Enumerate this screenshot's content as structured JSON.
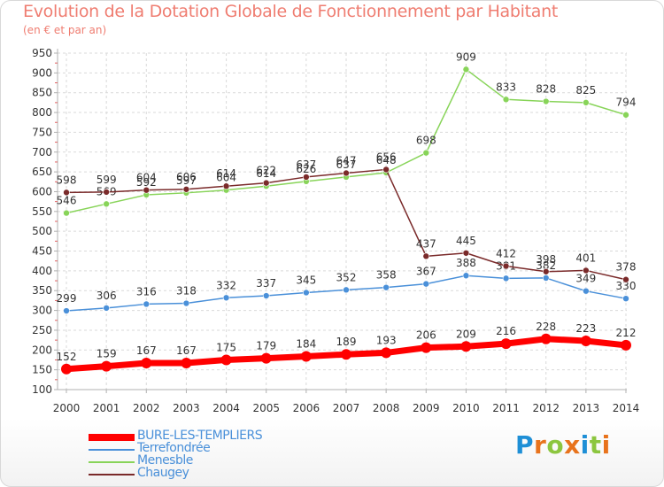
{
  "chart_data": {
    "type": "line",
    "title": "Evolution de la Dotation Globale de Fonctionnement par Habitant",
    "subtitle": "(en € et par an)",
    "xlabel": "",
    "ylabel": "",
    "ylim": [
      100,
      950
    ],
    "yticks": [
      100,
      150,
      200,
      250,
      300,
      350,
      400,
      450,
      500,
      550,
      600,
      650,
      700,
      750,
      800,
      850,
      900,
      950
    ],
    "categories": [
      "2000",
      "2001",
      "2002",
      "2003",
      "2004",
      "2005",
      "2006",
      "2007",
      "2008",
      "2009",
      "2010",
      "2011",
      "2012",
      "2013",
      "2014"
    ],
    "grid": true,
    "legend_position": "bottom-left",
    "series": [
      {
        "name": "BURE-LES-TEMPLIERS",
        "color": "#ff0000",
        "emphasis": true,
        "values": [
          152,
          159,
          167,
          167,
          175,
          179,
          184,
          189,
          193,
          206,
          209,
          216,
          228,
          223,
          212
        ]
      },
      {
        "name": "Terrefondrée",
        "color": "#4a90d9",
        "emphasis": false,
        "values": [
          299,
          306,
          316,
          318,
          332,
          337,
          345,
          352,
          358,
          367,
          388,
          381,
          382,
          349,
          330
        ]
      },
      {
        "name": "Menesble",
        "color": "#88d459",
        "emphasis": false,
        "values": [
          546,
          569,
          592,
          597,
          604,
          614,
          626,
          637,
          648,
          698,
          909,
          833,
          828,
          825,
          794
        ]
      },
      {
        "name": "Chaugey",
        "color": "#7a2a2a",
        "emphasis": false,
        "values": [
          598,
          599,
          604,
          606,
          614,
          622,
          637,
          647,
          656,
          437,
          445,
          412,
          398,
          401,
          378
        ]
      }
    ]
  },
  "brand": {
    "letters": [
      "P",
      "r",
      "o",
      "x",
      "i",
      "t",
      "i"
    ],
    "colors": [
      "#1e8fd6",
      "#e8731c",
      "#8cc63f",
      "#e8731c",
      "#1e8fd6",
      "#8cc63f",
      "#e8731c"
    ]
  }
}
